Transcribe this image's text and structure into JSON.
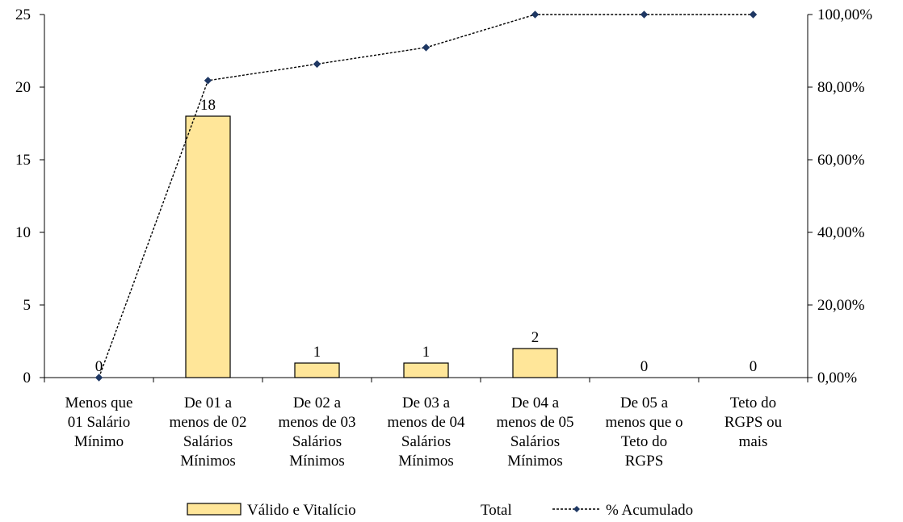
{
  "chart_data": {
    "type": "bar",
    "categories": [
      [
        "Menos que",
        "01 Salário",
        "Mínimo"
      ],
      [
        "De 01 a",
        "menos de 02",
        "Salários",
        "Mínimos"
      ],
      [
        "De 02 a",
        "menos de 03",
        "Salários",
        "Mínimos"
      ],
      [
        "De 03 a",
        "menos de 04",
        "Salários",
        "Mínimos"
      ],
      [
        "De 04 a",
        "menos de 05",
        "Salários",
        "Mínimos"
      ],
      [
        "De 05 a",
        "menos que o",
        "Teto do",
        "RGPS"
      ],
      [
        "Teto do",
        "RGPS ou",
        "mais"
      ]
    ],
    "series": [
      {
        "name": "Válido e Vitalício",
        "type": "bar",
        "axis": "left",
        "values": [
          0,
          18,
          1,
          1,
          2,
          0,
          0
        ],
        "data_labels": [
          "0",
          "18",
          "1",
          "1",
          "2",
          "0",
          "0"
        ],
        "color": "#FFE699"
      },
      {
        "name": "% Acumulado",
        "type": "line",
        "axis": "right",
        "values": [
          0,
          81.82,
          86.36,
          90.91,
          100,
          100,
          100
        ],
        "color": "#000000",
        "marker_color": "#1F3864"
      }
    ],
    "legend": {
      "position": "bottom",
      "entries": [
        "Válido e Vitalício",
        "Total",
        "% Acumulado"
      ]
    },
    "y_left": {
      "range": [
        0,
        25
      ],
      "ticks": [
        0,
        5,
        10,
        15,
        20,
        25
      ],
      "tick_labels": [
        "0",
        "5",
        "10",
        "15",
        "20",
        "25"
      ]
    },
    "y_right": {
      "range": [
        0,
        100
      ],
      "ticks": [
        0,
        20,
        40,
        60,
        80,
        100
      ],
      "tick_labels": [
        "0,00%",
        "20,00%",
        "40,00%",
        "60,00%",
        "80,00%",
        "100,00%"
      ]
    },
    "grid": false,
    "title": "",
    "xlabel": "",
    "ylabel": ""
  }
}
